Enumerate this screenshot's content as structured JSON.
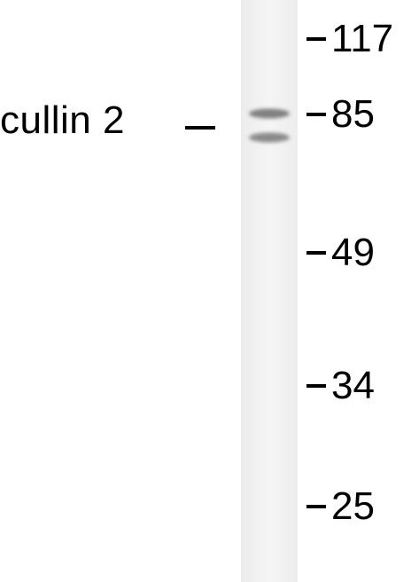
{
  "protein": {
    "label": "cullin 2"
  },
  "markers": {
    "m117": "117",
    "m85": "85",
    "m49": "49",
    "m34": "34",
    "m25": "25"
  },
  "colors": {
    "lane_background": "#f2f2f2",
    "band": "#8a8a8a",
    "text": "#000000"
  }
}
